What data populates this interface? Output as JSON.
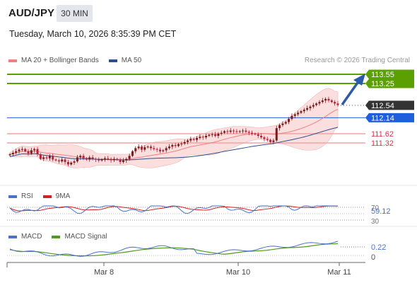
{
  "header": {
    "symbol": "AUD/JPY",
    "timeframe": "30 MIN",
    "datetime": "Tuesday, March 10, 2026 8:35:39 PM CET"
  },
  "legend": {
    "ma20_label": "MA 20 + Bollinger Bands",
    "ma50_label": "MA 50",
    "ma20_color": "#f08080",
    "ma50_color": "#2c4f8c",
    "source": "Research © 2026 Trading Central"
  },
  "levels": [
    {
      "label": "113.55",
      "value": 113.55,
      "kind": "target"
    },
    {
      "label": "113.25",
      "value": 113.25,
      "kind": "target"
    },
    {
      "label": "112.54",
      "value": 112.54,
      "kind": "last"
    },
    {
      "label": "112.14",
      "value": 112.14,
      "kind": "pivot"
    },
    {
      "label": "111.62",
      "value": 111.62,
      "kind": "support"
    },
    {
      "label": "111.32",
      "value": 111.32,
      "kind": "support"
    }
  ],
  "colors": {
    "target": "#5aa000",
    "last": "#333333",
    "pivot": "#1f5fdb",
    "support": "#d9344f",
    "support_line": "#f4a3a3",
    "candle_up": "#7a1a1a",
    "candle_down": "#b5203a",
    "band_fill": "#f9d4d4",
    "arrow": "#2c59a8"
  },
  "rsi": {
    "label": "RSI",
    "ma_label": "9MA",
    "rsi_color": "#4a72c8",
    "ma_color": "#d42020",
    "value_label": "59.12",
    "level_70": "70",
    "level_30": "30"
  },
  "macd": {
    "label": "MACD",
    "signal_label": "MACD Signal",
    "macd_color": "#4a72c8",
    "signal_color": "#4f9a1f",
    "value_label": "0.22",
    "zero_label": "0"
  },
  "chart_data": {
    "type": "candlestick",
    "x_ticks": [
      "Mar 8",
      "Mar 10",
      "Mar 11"
    ],
    "y_range": [
      110.6,
      113.8
    ],
    "close": [
      110.95,
      111.0,
      111.05,
      111.1,
      111.12,
      111.05,
      110.98,
      111.08,
      111.12,
      110.95,
      110.8,
      110.85,
      110.82,
      110.9,
      110.78,
      110.75,
      110.72,
      110.78,
      110.7,
      110.62,
      110.68,
      110.72,
      110.85,
      110.9,
      110.82,
      110.78,
      110.85,
      110.8,
      110.78,
      110.75,
      110.78,
      110.82,
      110.8,
      110.76,
      110.8,
      110.78,
      110.7,
      110.75,
      110.8,
      110.9,
      111.05,
      111.15,
      111.2,
      111.1,
      111.18,
      111.2,
      111.15,
      111.12,
      111.1,
      111.05,
      111.08,
      111.15,
      111.2,
      111.25,
      111.22,
      111.28,
      111.3,
      111.35,
      111.4,
      111.45,
      111.42,
      111.48,
      111.52,
      111.5,
      111.55,
      111.58,
      111.6,
      111.55,
      111.62,
      111.65,
      111.7,
      111.68,
      111.72,
      111.7,
      111.68,
      111.7,
      111.72,
      111.68,
      111.65,
      111.62,
      111.6,
      111.55,
      111.5,
      111.45,
      111.42,
      111.35,
      111.4,
      111.8,
      111.9,
      111.95,
      112.0,
      112.1,
      112.2,
      112.25,
      112.3,
      112.35,
      112.4,
      112.45,
      112.5,
      112.55,
      112.6,
      112.65,
      112.7,
      112.75,
      112.7,
      112.65,
      112.6,
      112.55
    ]
  }
}
